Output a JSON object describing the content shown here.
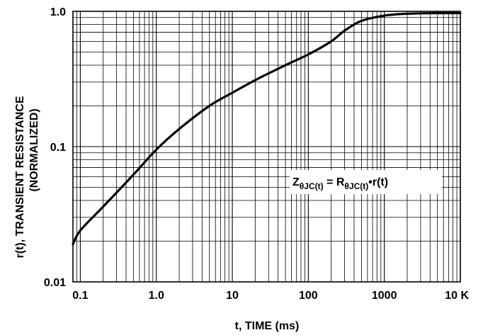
{
  "chart_data": {
    "type": "line",
    "title": "",
    "xlabel": "t, TIME (ms)",
    "ylabel_main": "r(t), TRANSIENT RESISTANCE",
    "ylabel_sub": "(NORMALIZED)",
    "x_scale": "log",
    "y_scale": "log",
    "xlim": [
      0.08,
      10000
    ],
    "ylim": [
      0.01,
      1.0
    ],
    "grid": true,
    "x_ticks": [
      {
        "value": 0.1,
        "label": "0.1"
      },
      {
        "value": 1,
        "label": "1.0"
      },
      {
        "value": 10,
        "label": "10"
      },
      {
        "value": 100,
        "label": "100"
      },
      {
        "value": 1000,
        "label": "1000"
      },
      {
        "value": 10000,
        "label": "10 K"
      }
    ],
    "y_ticks": [
      {
        "value": 0.01,
        "label": "0.01"
      },
      {
        "value": 0.1,
        "label": "0.1"
      },
      {
        "value": 1.0,
        "label": "1.0"
      }
    ],
    "annotation": {
      "z": "Z",
      "z_sub": "θJC(t)",
      "eq": " = R",
      "r_sub": "θJC(t)",
      "tail": "•r(t)"
    },
    "series": [
      {
        "x": [
          0.08,
          0.1,
          0.2,
          0.5,
          1,
          2,
          5,
          10,
          20,
          50,
          100,
          200,
          300,
          500,
          1000,
          2000,
          5000,
          10000
        ],
        "y": [
          0.019,
          0.024,
          0.036,
          0.062,
          0.095,
          0.135,
          0.2,
          0.25,
          0.31,
          0.4,
          0.48,
          0.6,
          0.72,
          0.85,
          0.93,
          0.96,
          0.97,
          0.97
        ]
      }
    ]
  }
}
